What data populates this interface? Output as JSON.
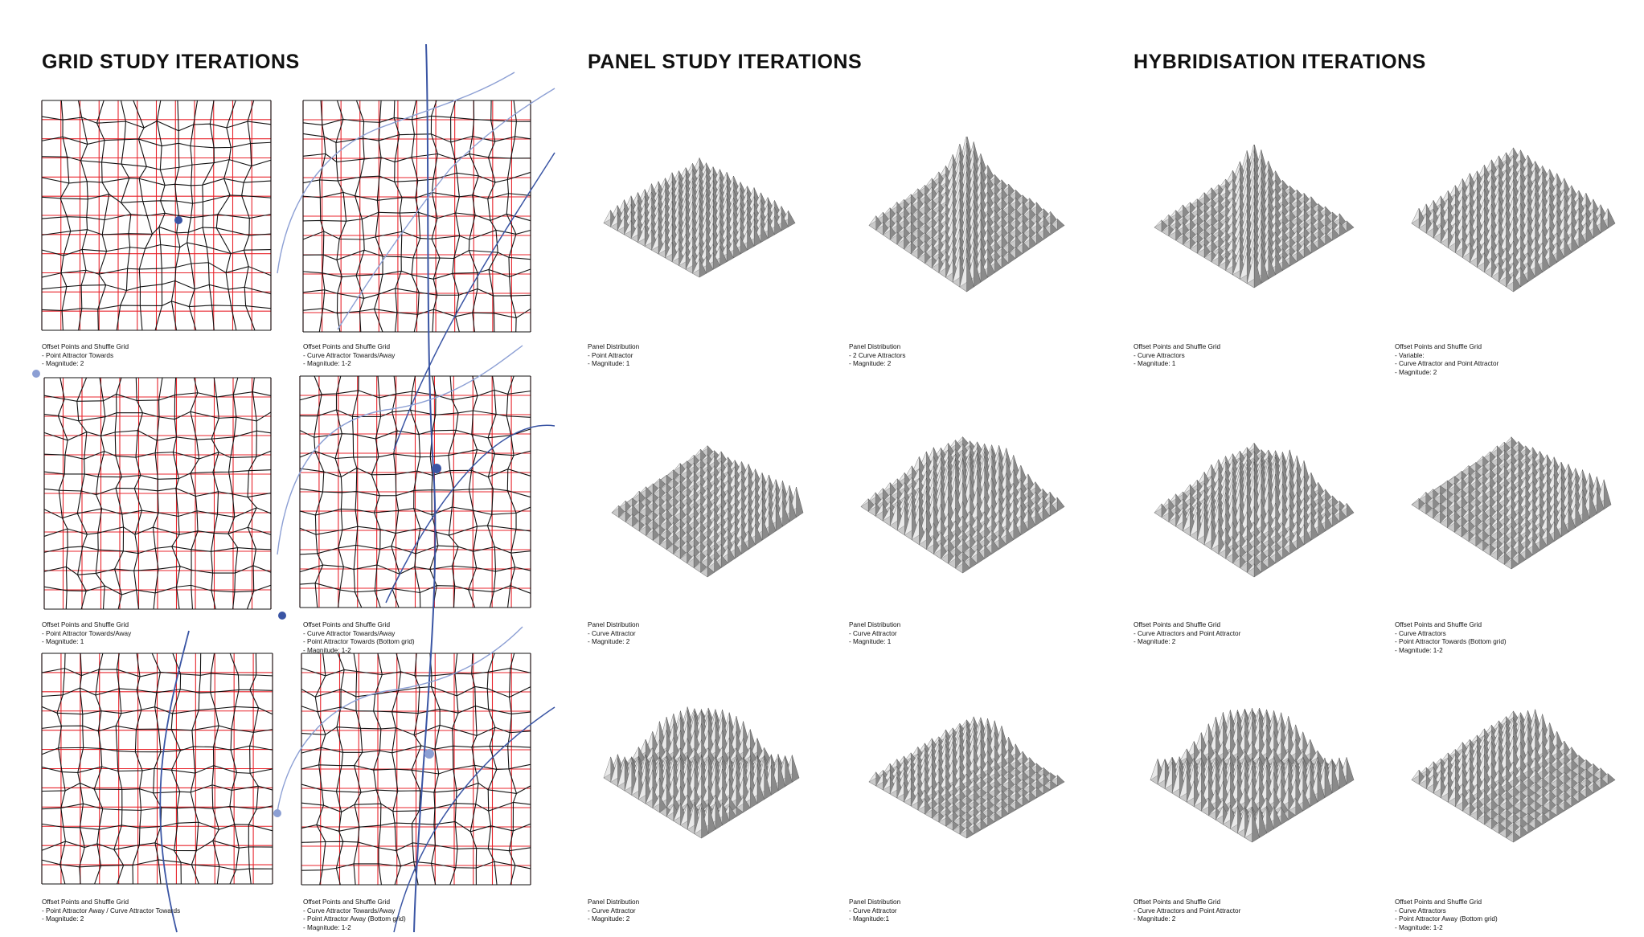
{
  "sections": {
    "grid": "GRID STUDY ITERATIONS",
    "panel": "PANEL STUDY ITERATIONS",
    "hybrid": "HYBRIDISATION ITERATIONS"
  },
  "colors": {
    "grid_reference": "#e8242c",
    "grid_deformed": "#111111",
    "attractor_curve": "#3a55a4",
    "attractor_curve_light": "#8c9fd4",
    "panel_dark": "#4a4a4a",
    "panel_light": "#f2f2f2"
  },
  "grid_captions": [
    [
      "Offset Points and Shuffle Grid",
      "- Point Attractor Towards",
      "- Magnitude: 2"
    ],
    [
      "Offset Points and Shuffle Grid",
      "- Curve Attractor Towards/Away",
      "- Magnitude: 1-2"
    ],
    [
      "Offset Points and Shuffle Grid",
      "- Point Attractor Towards/Away",
      "- Magnitude: 1"
    ],
    [
      "Offset Points and Shuffle Grid",
      "- Curve Attractor Towards/Away",
      "- Point Attractor Towards (Bottom grid)",
      "- Magnitude: 1-2"
    ],
    [
      "Offset Points and Shuffle Grid",
      "- Point Attractor Away / Curve Attractor Towards",
      "- Magnitude: 2"
    ],
    [
      "Offset Points and Shuffle Grid",
      "- Curve Attractor Towards/Away",
      "- Point Attractor Away (Bottom grid)",
      "- Magnitude: 1-2"
    ]
  ],
  "panel_captions": [
    [
      "Panel Distribution",
      "- Point Attractor",
      "- Magnitude: 1"
    ],
    [
      "Panel Distribution",
      "- 2 Curve Attractors",
      "- Magnitude: 2"
    ],
    [
      "Panel Distribution",
      "- Curve Attractor",
      "- Magnitude: 2"
    ],
    [
      "Panel Distribution",
      "- Curve Attractor",
      "- Magnitude: 1"
    ],
    [
      "Panel Distribution",
      "- Curve Attractor",
      "- Magnitude: 2"
    ],
    [
      "Panel Distribution",
      "- Curve Attractor",
      "- Magnitude:1"
    ]
  ],
  "hybrid_captions": [
    [
      "Offset Points and Shuffle Grid",
      "- Curve Attractors",
      "- Magnitude: 1"
    ],
    [
      "Offset Points and Shuffle Grid",
      "- Variable:",
      "- Curve Attractor and Point Attractor",
      "- Magnitude: 2"
    ],
    [
      "Offset Points and Shuffle Grid",
      "- Curve Attractors and Point Attractor",
      "- Magnitude: 2"
    ],
    [
      "Offset Points and Shuffle Grid",
      "- Curve Attractors",
      "- Point Attractor Towards (Bottom grid)",
      "- Magnitude: 1-2"
    ],
    [
      "Offset Points and Shuffle Grid",
      "- Curve Attractors and Point Attractor",
      "- Magnitude: 2"
    ],
    [
      "Offset Points and Shuffle Grid",
      "- Curve Attractors",
      "- Point Attractor Away (Bottom grid)",
      "- Magnitude: 1-2"
    ]
  ]
}
